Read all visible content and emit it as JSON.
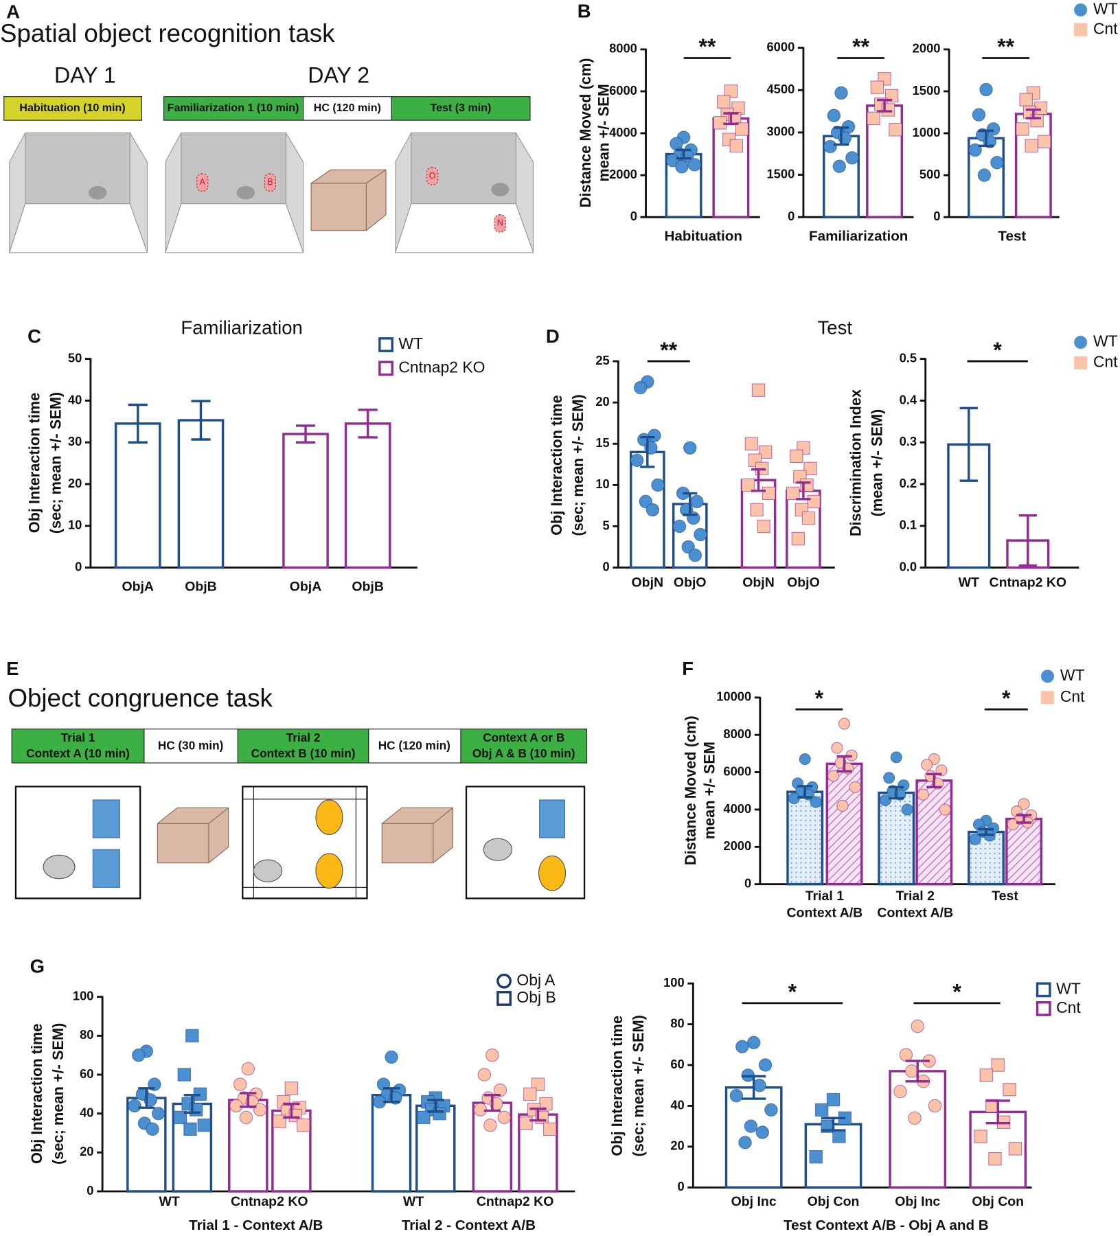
{
  "panel_labels": [
    "A",
    "B",
    "C",
    "D",
    "E",
    "F",
    "G"
  ],
  "diagram_a": {
    "title": "Spatial object recognition task",
    "days": [
      "DAY 1",
      "DAY 2"
    ],
    "phases": [
      "Habituation (10 min)",
      "Familiarization 1 (10 min)",
      "HC (120 min)",
      "Test (3 min)"
    ],
    "objects": [
      "A",
      "B",
      "O",
      "N"
    ]
  },
  "diagram_e": {
    "title": "Object congruence task",
    "phases": [
      [
        "Trial 1",
        "Context A (10 min)"
      ],
      [
        "HC (30 min)"
      ],
      [
        "Trial 2",
        "Context B (10 min)"
      ],
      [
        "HC (120 min)"
      ],
      [
        "Context A or B",
        "Obj A & B (10 min)"
      ]
    ]
  },
  "chart_data": [
    {
      "type": "bar",
      "ylabel": [
        "Distance Moved (cm)",
        "mean +/- SEM"
      ],
      "xlabel": "Habituation",
      "ylim": [
        0,
        8000
      ],
      "yticks": [
        0,
        2000,
        4000,
        6000,
        8000
      ],
      "categories": [
        null,
        null
      ],
      "annotations": [
        "**"
      ],
      "series": [
        {
          "color": "#1f4e8c",
          "values": [
            3000,
            null
          ],
          "errors": [
            200,
            null
          ],
          "points": [
            [
              3800,
              3500,
              3200,
              3000,
              2900,
              2700,
              2500,
              2400
            ],
            null
          ],
          "point_marker": "circle",
          "point_color": "#4a8fd0"
        },
        {
          "color": "#922b96",
          "values": [
            null,
            4700
          ],
          "errors": [
            null,
            250
          ],
          "points": [
            null,
            [
              6000,
              5500,
              5200,
              4900,
              4700,
              4500,
              4200,
              3700,
              3400
            ]
          ],
          "point_marker": "square",
          "point_color": "#fbc4a8"
        }
      ]
    },
    {
      "type": "bar",
      "xlabel": "Familiarization",
      "ylim": [
        0,
        6000
      ],
      "yticks": [
        0,
        1500,
        3000,
        4500,
        6000
      ],
      "categories": [
        null,
        null
      ],
      "annotations": [
        "**"
      ],
      "series": [
        {
          "color": "#1f4e8c",
          "values": [
            2870,
            null
          ],
          "errors": [
            300,
            null
          ],
          "points": [
            [
              4400,
              3600,
              3200,
              3000,
              2800,
              2500,
              2100,
              1800
            ],
            null
          ],
          "point_marker": "circle",
          "point_color": "#4a8fd0"
        },
        {
          "color": "#922b96",
          "values": [
            null,
            3950
          ],
          "errors": [
            null,
            200
          ],
          "points": [
            null,
            [
              4900,
              4600,
              4300,
              4000,
              3800,
              3500,
              3100
            ]
          ],
          "point_marker": "square",
          "point_color": "#fbc4a8"
        }
      ]
    },
    {
      "type": "bar",
      "xlabel": "Test",
      "ylim": [
        0,
        2000
      ],
      "yticks": [
        0,
        500,
        1000,
        1500,
        2000
      ],
      "categories": [
        null,
        null
      ],
      "annotations": [
        "**"
      ],
      "legend": [
        {
          "label": "WT",
          "marker": "circle",
          "color": "#4a8fd0"
        },
        {
          "label": "Cnt",
          "marker": "square",
          "color": "#fbc4a8"
        }
      ],
      "series": [
        {
          "color": "#1f4e8c",
          "values": [
            940,
            null
          ],
          "errors": [
            90,
            null
          ],
          "points": [
            [
              1520,
              1220,
              1050,
              980,
              900,
              800,
              650,
              500
            ],
            null
          ],
          "point_marker": "circle",
          "point_color": "#4a8fd0"
        },
        {
          "color": "#922b96",
          "values": [
            null,
            1230
          ],
          "errors": [
            null,
            50
          ],
          "points": [
            null,
            [
              1480,
              1400,
              1300,
              1250,
              1150,
              1050,
              900,
              850
            ]
          ],
          "point_marker": "square",
          "point_color": "#fbc4a8"
        }
      ]
    },
    {
      "type": "bar",
      "title": "Familiarization",
      "ylabel": [
        "Obj Interaction time",
        "(sec; mean +/- SEM)"
      ],
      "ylim": [
        0,
        50
      ],
      "yticks": [
        0,
        10,
        20,
        30,
        40,
        50
      ],
      "categories": [
        "ObjA",
        "ObjB",
        "ObjA",
        "ObjB"
      ],
      "legend_outline": true,
      "legend": [
        {
          "label": "WT",
          "marker": "square",
          "color": "#1f4e8c"
        },
        {
          "label": "Cntnap2 KO",
          "marker": "square",
          "color": "#922b96"
        }
      ],
      "series": [
        {
          "color": "#1f4e8c",
          "values": [
            34.5,
            35.3,
            null,
            null
          ],
          "errors": [
            4.5,
            4.6,
            null,
            null
          ]
        },
        {
          "color": "#922b96",
          "values": [
            null,
            null,
            32,
            34.5
          ],
          "errors": [
            null,
            null,
            2,
            3.3
          ]
        }
      ]
    },
    {
      "type": "bar",
      "title": "Test",
      "ylabel": [
        "Obj Interaction time",
        "(sec; mean +/- SEM)"
      ],
      "ylim": [
        0,
        25
      ],
      "yticks": [
        0,
        5,
        10,
        15,
        20,
        25
      ],
      "categories": [
        "ObjN",
        "ObjO",
        "ObjN",
        "ObjO"
      ],
      "annotations": [
        "**"
      ],
      "series": [
        {
          "color": "#1f4e8c",
          "values": [
            14,
            7.7,
            null,
            null
          ],
          "errors": [
            1.8,
            1.3,
            null,
            null
          ],
          "points": [
            [
              22.5,
              21.8,
              16,
              15.5,
              14.5,
              13,
              10,
              8,
              7
            ],
            [
              14.5,
              9,
              8,
              7,
              6,
              5,
              4,
              2.5,
              1.5
            ],
            null,
            null
          ],
          "point_marker": "circle",
          "point_color": "#4a8fd0"
        },
        {
          "color": "#922b96",
          "values": [
            null,
            null,
            10.6,
            9.3
          ],
          "errors": [
            null,
            null,
            1.3,
            1
          ],
          "points": [
            null,
            null,
            [
              21.5,
              15,
              14,
              13,
              12,
              10,
              9,
              7,
              5
            ],
            [
              14.5,
              13.5,
              12,
              11,
              10,
              9,
              8,
              7,
              6,
              3.5
            ]
          ],
          "point_marker": "square",
          "point_color": "#fbc4a8"
        }
      ]
    },
    {
      "type": "bar",
      "ylabel": [
        "Discrimination Index",
        "(mean +/- SEM)"
      ],
      "ylim": [
        0,
        0.5
      ],
      "yticks": [
        {
          "value": 0,
          "label": "0.0"
        },
        0.1,
        0.2,
        0.3,
        0.4,
        0.5
      ],
      "categories": [
        "WT",
        "Cntnap2 KO"
      ],
      "annotations": [
        "*"
      ],
      "legend": [
        {
          "label": "WT",
          "marker": "circle",
          "color": "#4a8fd0"
        },
        {
          "label": "Cnt",
          "marker": "square",
          "color": "#fbc4a8"
        }
      ],
      "series": [
        {
          "color": "#1f4e8c",
          "values": [
            0.295,
            null
          ],
          "errors": [
            0.087,
            null
          ]
        },
        {
          "color": "#922b96",
          "values": [
            null,
            0.065
          ],
          "errors": [
            null,
            0.06
          ]
        }
      ]
    },
    {
      "type": "bar",
      "ylabel": [
        "Distance Moved (cm)",
        "mean +/- SEM"
      ],
      "ylim": [
        0,
        10000
      ],
      "yticks": [
        0,
        2000,
        4000,
        6000,
        8000,
        10000
      ],
      "categories": [
        null,
        null,
        null,
        null,
        null,
        null
      ],
      "group_labels": [
        [
          "Trial 1",
          "Context A/B"
        ],
        [
          "Trial 2",
          "Context A/B"
        ],
        [
          "Test"
        ]
      ],
      "annotations": [
        "*",
        "*"
      ],
      "legend": [
        {
          "label": "WT",
          "marker": "circle",
          "color": "#4a8fd0"
        },
        {
          "label": "Cnt",
          "marker": "square",
          "color": "#fbc4a8"
        }
      ],
      "series": [
        {
          "color": "#1f4e8c",
          "fill": "dots",
          "values": [
            4950,
            null,
            4900,
            null,
            2800,
            null
          ],
          "errors": [
            300,
            null,
            300,
            null,
            150,
            null
          ],
          "points": [
            [
              6700,
              5400,
              5200,
              5000,
              4800,
              4600,
              4400
            ],
            null,
            [
              6800,
              5700,
              5300,
              5000,
              4800,
              4500,
              4000
            ],
            null,
            [
              3400,
              3200,
              3000,
              2800,
              2600,
              2400
            ],
            null
          ],
          "point_marker": "circle",
          "point_color": "#4a8fd0"
        },
        {
          "color": "#922b96",
          "fill": "hatch",
          "values": [
            null,
            6450,
            null,
            5550,
            null,
            3500
          ],
          "errors": [
            null,
            400,
            null,
            350,
            null,
            200
          ],
          "points": [
            null,
            [
              8600,
              7300,
              6900,
              6500,
              6200,
              5800,
              5200,
              4200
            ],
            null,
            [
              6700,
              6400,
              6100,
              5800,
              5400,
              4800,
              4000
            ],
            null,
            [
              4300,
              3900,
              3700,
              3500,
              3300,
              3200
            ]
          ],
          "point_marker": "circle",
          "point_color": "#fbc4a8"
        }
      ]
    },
    {
      "type": "bar",
      "ylabel": [
        "Obj Interaction time",
        "(sec; mean +/- SEM)"
      ],
      "xlabel": [
        "Trial 1 - Context A/B",
        "Trial 2 - Context A/B"
      ],
      "ylim": [
        0,
        100
      ],
      "yticks": [
        0,
        20,
        40,
        60,
        80,
        100
      ],
      "categories": [
        null,
        null,
        null,
        null,
        null,
        null,
        null,
        null
      ],
      "group_labels": [
        [
          "WT"
        ],
        [
          "Cntnap2 KO"
        ],
        [
          "WT"
        ],
        [
          "Cntnap2 KO"
        ]
      ],
      "point_markers": [
        "circle",
        "square",
        "circle",
        "square",
        "circle",
        "square",
        "circle",
        "square"
      ],
      "legend_outline": true,
      "legend": [
        {
          "label": "Obj A",
          "marker": "circle",
          "color": "#1f3b6e"
        },
        {
          "label": "Obj B",
          "marker": "square",
          "color": "#1f3b6e"
        }
      ],
      "series": [
        {
          "color": "#1f4e8c",
          "values": [
            48,
            45,
            null,
            null,
            49.5,
            44,
            null,
            null
          ],
          "errors": [
            5,
            4.5,
            null,
            null,
            3.5,
            3,
            null,
            null
          ],
          "points": [
            [
              72,
              70,
              55,
              50,
              47,
              44,
              40,
              35,
              32
            ],
            [
              80,
              60,
              50,
              45,
              42,
              38,
              34,
              32
            ],
            null,
            null,
            [
              69,
              55,
              52,
              50,
              48,
              46
            ],
            [
              48,
              46,
              44,
              42,
              40,
              38
            ],
            null,
            null
          ],
          "point_color": "#4a8fd0"
        },
        {
          "color": "#922b96",
          "values": [
            null,
            null,
            47,
            41.5,
            null,
            null,
            45.5,
            39.5
          ],
          "errors": [
            null,
            null,
            3.5,
            3.5,
            null,
            null,
            4,
            3
          ],
          "points": [
            null,
            null,
            [
              63,
              55,
              50,
              48,
              46,
              44,
              42,
              38
            ],
            [
              53,
              46,
              43,
              41,
              39,
              36,
              34
            ],
            null,
            null,
            [
              70,
              60,
              52,
              48,
              45,
              42,
              38,
              34
            ],
            [
              55,
              50,
              45,
              42,
              38,
              35,
              32
            ]
          ],
          "point_color": "#fbc4a8"
        }
      ]
    },
    {
      "type": "bar",
      "ylabel": [
        "Obj Interaction time",
        "(sec; mean +/- SEM)"
      ],
      "xlabel": "Test Context A/B - Obj A and B",
      "ylim": [
        0,
        100
      ],
      "yticks": [
        0,
        20,
        40,
        60,
        80,
        100
      ],
      "categories": [
        "Obj Inc",
        "Obj Con",
        "Obj Inc",
        "Obj Con"
      ],
      "annotations": [
        "*",
        "*"
      ],
      "point_markers": [
        "circle",
        "square",
        "circle",
        "square"
      ],
      "legend_outline": true,
      "legend": [
        {
          "label": "WT",
          "marker": "square",
          "color": "#1f4e8c"
        },
        {
          "label": "Cnt",
          "marker": "square",
          "color": "#922b96"
        }
      ],
      "series": [
        {
          "color": "#1f4e8c",
          "values": [
            49,
            31,
            null,
            null
          ],
          "errors": [
            5.5,
            3,
            null,
            null
          ],
          "points": [
            [
              71,
              69,
              60,
              55,
              50,
              45,
              38,
              30,
              27,
              22
            ],
            [
              43,
              38,
              34,
              30,
              25,
              15
            ],
            null,
            null
          ],
          "point_color": "#4a8fd0"
        },
        {
          "color": "#922b96",
          "values": [
            null,
            null,
            57,
            37
          ],
          "errors": [
            null,
            null,
            5,
            5.5
          ],
          "points": [
            null,
            null,
            [
              79,
              65,
              62,
              57,
              52,
              47,
              40,
              34
            ],
            [
              60,
              55,
              48,
              40,
              32,
              25,
              19,
              14
            ]
          ],
          "point_color": "#fbc4a8"
        }
      ]
    }
  ]
}
